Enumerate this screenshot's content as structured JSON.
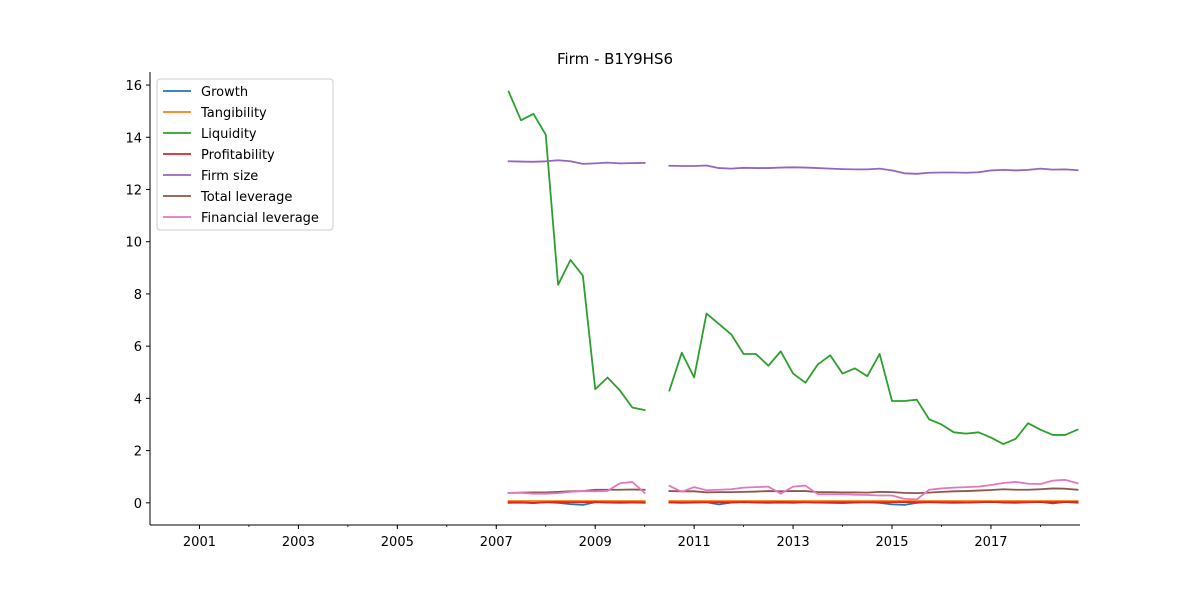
{
  "chart_data": {
    "type": "line",
    "title": "Firm - B1Y9HS6",
    "xlabel": "",
    "ylabel": "",
    "xlim": [
      2000.0,
      2018.8
    ],
    "ylim": [
      -0.85,
      16.5
    ],
    "x_ticks": [
      "2001",
      "2003",
      "2005",
      "2007",
      "2009",
      "2011",
      "2013",
      "2015",
      "2017"
    ],
    "y_ticks": [
      "0",
      "2",
      "4",
      "6",
      "8",
      "10",
      "12",
      "14",
      "16"
    ],
    "grid": false,
    "legend_position": "top-left",
    "segments_x": [
      [
        2007.25,
        2007.5,
        2007.75,
        2008.0,
        2008.25,
        2008.5,
        2008.75,
        2009.0,
        2009.25,
        2009.5,
        2009.75,
        2010.0
      ],
      [
        2010.5,
        2010.75,
        2011.0,
        2011.25,
        2011.5,
        2011.75,
        2012.0,
        2012.25,
        2012.5,
        2012.75,
        2013.0,
        2013.25,
        2013.5,
        2013.75,
        2014.0,
        2014.25,
        2014.5,
        2014.75,
        2015.0,
        2015.25,
        2015.5,
        2015.75,
        2016.0,
        2016.25,
        2016.5,
        2016.75,
        2017.0,
        2017.25,
        2017.5,
        2017.75,
        2018.0,
        2018.25,
        2018.5,
        2018.75
      ]
    ],
    "series": [
      {
        "name": "Growth",
        "color": "#1f77b4",
        "segments": [
          [
            0.0,
            0.01,
            -0.01,
            0.02,
            0.0,
            -0.05,
            -0.08,
            0.02,
            0.01,
            0.0,
            0.01,
            0.0
          ],
          [
            0.01,
            0.0,
            0.01,
            0.02,
            -0.06,
            0.01,
            0.02,
            0.01,
            0.0,
            0.01,
            0.0,
            0.02,
            0.01,
            0.0,
            -0.01,
            0.01,
            0.02,
            0.0,
            -0.06,
            -0.08,
            0.0,
            0.02,
            0.01,
            0.0,
            0.01,
            0.02,
            0.04,
            0.01,
            0.0,
            0.02,
            0.03,
            -0.02,
            0.03,
            0.0
          ]
        ]
      },
      {
        "name": "Tangibility",
        "color": "#ff7f0e",
        "segments": [
          [
            0.07,
            0.07,
            0.07,
            0.07,
            0.07,
            0.07,
            0.07,
            0.07,
            0.07,
            0.07,
            0.07,
            0.07
          ],
          [
            0.07,
            0.07,
            0.07,
            0.07,
            0.07,
            0.07,
            0.07,
            0.07,
            0.07,
            0.07,
            0.07,
            0.07,
            0.07,
            0.07,
            0.07,
            0.07,
            0.07,
            0.07,
            0.07,
            0.07,
            0.07,
            0.07,
            0.07,
            0.07,
            0.07,
            0.07,
            0.07,
            0.07,
            0.07,
            0.07,
            0.07,
            0.07,
            0.07,
            0.07
          ]
        ]
      },
      {
        "name": "Liquidity",
        "color": "#2ca02c",
        "segments": [
          [
            15.75,
            14.65,
            14.9,
            14.1,
            8.35,
            9.3,
            8.7,
            4.35,
            4.8,
            4.3,
            3.65,
            3.55
          ],
          [
            4.3,
            5.75,
            4.8,
            7.25,
            6.85,
            6.45,
            5.7,
            5.7,
            5.25,
            5.8,
            4.95,
            4.6,
            5.3,
            5.65,
            4.95,
            5.15,
            4.85,
            5.7,
            3.9,
            3.9,
            3.95,
            3.2,
            3.0,
            2.7,
            2.65,
            2.7,
            2.5,
            2.25,
            2.45,
            3.05,
            2.8,
            2.6,
            2.6,
            2.8
          ]
        ]
      },
      {
        "name": "Profitability",
        "color": "#d62728",
        "segments": [
          [
            0.02,
            0.02,
            0.0,
            0.02,
            0.03,
            0.02,
            0.02,
            0.03,
            0.02,
            0.02,
            0.02,
            0.02
          ],
          [
            0.02,
            0.01,
            0.02,
            0.02,
            0.02,
            0.02,
            0.03,
            0.02,
            0.02,
            0.03,
            0.02,
            0.02,
            0.01,
            0.02,
            0.02,
            0.02,
            0.02,
            0.02,
            0.02,
            0.03,
            0.02,
            0.03,
            0.02,
            0.02,
            0.01,
            0.02,
            0.03,
            0.02,
            0.02,
            0.02,
            0.03,
            0.02,
            0.03,
            0.03
          ]
        ]
      },
      {
        "name": "Firm size",
        "color": "#9467bd",
        "segments": [
          [
            13.08,
            13.07,
            13.06,
            13.08,
            13.12,
            13.08,
            12.98,
            13.0,
            13.03,
            13.0,
            13.01,
            13.02
          ],
          [
            12.91,
            12.9,
            12.9,
            12.92,
            12.82,
            12.8,
            12.83,
            12.82,
            12.82,
            12.84,
            12.85,
            12.84,
            12.82,
            12.8,
            12.78,
            12.77,
            12.77,
            12.8,
            12.73,
            12.62,
            12.6,
            12.64,
            12.65,
            12.65,
            12.64,
            12.66,
            12.73,
            12.75,
            12.73,
            12.75,
            12.8,
            12.76,
            12.77,
            12.74
          ]
        ]
      },
      {
        "name": "Total leverage",
        "color": "#8c564b",
        "segments": [
          [
            0.38,
            0.39,
            0.4,
            0.4,
            0.42,
            0.44,
            0.45,
            0.5,
            0.5,
            0.5,
            0.51,
            0.5
          ],
          [
            0.45,
            0.44,
            0.44,
            0.4,
            0.41,
            0.41,
            0.42,
            0.43,
            0.45,
            0.44,
            0.45,
            0.45,
            0.41,
            0.41,
            0.4,
            0.4,
            0.39,
            0.42,
            0.41,
            0.38,
            0.37,
            0.39,
            0.42,
            0.44,
            0.45,
            0.47,
            0.49,
            0.52,
            0.5,
            0.5,
            0.52,
            0.55,
            0.54,
            0.5
          ]
        ]
      },
      {
        "name": "Financial leverage",
        "color": "#e377c2",
        "segments": [
          [
            0.38,
            0.38,
            0.35,
            0.35,
            0.37,
            0.42,
            0.45,
            0.44,
            0.46,
            0.75,
            0.8,
            0.38
          ],
          [
            0.65,
            0.42,
            0.6,
            0.48,
            0.5,
            0.52,
            0.58,
            0.6,
            0.62,
            0.35,
            0.62,
            0.66,
            0.33,
            0.33,
            0.33,
            0.31,
            0.3,
            0.28,
            0.28,
            0.15,
            0.13,
            0.5,
            0.55,
            0.58,
            0.6,
            0.62,
            0.68,
            0.76,
            0.8,
            0.73,
            0.72,
            0.85,
            0.88,
            0.75
          ]
        ]
      }
    ]
  }
}
